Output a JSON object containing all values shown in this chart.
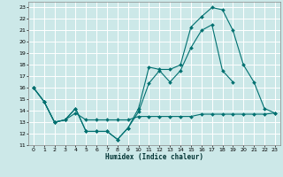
{
  "xlabel": "Humidex (Indice chaleur)",
  "bg_color": "#cce8e8",
  "grid_color": "#ffffff",
  "line_color": "#007070",
  "xlim": [
    -0.5,
    23.5
  ],
  "ylim": [
    11,
    23.5
  ],
  "x_ticks": [
    0,
    1,
    2,
    3,
    4,
    5,
    6,
    7,
    8,
    9,
    10,
    11,
    12,
    13,
    14,
    15,
    16,
    17,
    18,
    19,
    20,
    21,
    22,
    23
  ],
  "y_ticks": [
    11,
    12,
    13,
    14,
    15,
    16,
    17,
    18,
    19,
    20,
    21,
    22,
    23
  ],
  "line1_y": [
    16,
    14.8,
    13,
    13.2,
    14.2,
    12.2,
    12.2,
    12.2,
    11.5,
    12.5,
    13.9,
    16.4,
    17.5,
    16.5,
    17.5,
    19.5,
    21.0,
    21.5,
    17.5,
    16.5,
    null,
    null,
    null,
    null
  ],
  "line2_y": [
    16,
    14.8,
    13,
    13.2,
    14.2,
    12.2,
    12.2,
    12.2,
    11.5,
    12.5,
    14.2,
    17.8,
    17.6,
    17.6,
    18.0,
    21.3,
    22.2,
    23.0,
    22.8,
    21.0,
    18.0,
    16.5,
    14.2,
    13.8
  ],
  "line3_y": [
    16,
    14.8,
    13.0,
    13.2,
    13.8,
    13.2,
    13.2,
    13.2,
    13.2,
    13.2,
    13.5,
    13.5,
    13.5,
    13.5,
    13.5,
    13.5,
    13.7,
    13.7,
    13.7,
    13.7,
    13.7,
    13.7,
    13.7,
    13.8
  ]
}
